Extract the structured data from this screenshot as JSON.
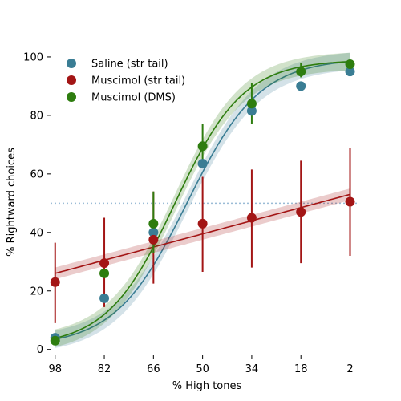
{
  "chart_data": {
    "type": "scatter",
    "title": "",
    "xlabel": "% High tones",
    "ylabel": "% Rightward choices",
    "x_ticks": [
      98,
      82,
      66,
      50,
      34,
      18,
      2
    ],
    "y_ticks": [
      0,
      20,
      40,
      60,
      80,
      100
    ],
    "xlim": [
      99.5,
      -1
    ],
    "ylim": [
      -2,
      103
    ],
    "x_reversed": true,
    "grid": false,
    "legend_position": "top-left",
    "reference_line": {
      "y": 50,
      "style": "dotted",
      "color": "#9bbcd6"
    },
    "series": [
      {
        "name": "Saline (str tail)",
        "color": "#3a7d94",
        "x": [
          98,
          82,
          66,
          50,
          34,
          18,
          2
        ],
        "y": [
          4,
          17.5,
          40,
          63.5,
          81.5,
          90,
          95
        ],
        "err_low": [
          4,
          17.5,
          40,
          63.5,
          81.5,
          90,
          95
        ],
        "err_high": [
          4,
          17.5,
          40,
          63.5,
          81.5,
          90,
          95
        ],
        "fit": {
          "low": 1,
          "high": 99.5,
          "mid": 55,
          "slope": 0.085,
          "band": 3
        }
      },
      {
        "name": "Muscimol (str tail)",
        "color": "#a31515",
        "x": [
          98,
          82,
          66,
          50,
          34,
          18,
          2
        ],
        "y": [
          23,
          29.5,
          37.5,
          43,
          45,
          47,
          50.5
        ],
        "err_low": [
          9,
          14.5,
          22.5,
          26.5,
          28,
          29.5,
          32
        ],
        "err_high": [
          36.5,
          45,
          54,
          59,
          61.5,
          64.5,
          69
        ],
        "fit": {
          "linear": true,
          "y_at_98": 26,
          "y_at_2": 53,
          "band": 2
        }
      },
      {
        "name": "Muscimol (DMS)",
        "color": "#2e7d0f",
        "x": [
          98,
          82,
          66,
          50,
          34,
          18,
          2
        ],
        "y": [
          3,
          26,
          43,
          69.5,
          84,
          95,
          97.5
        ],
        "err_low": [
          3,
          26,
          33,
          63,
          77,
          93,
          96
        ],
        "err_high": [
          3,
          26,
          54,
          77,
          91,
          98,
          99
        ],
        "fit": {
          "low": 1,
          "high": 99,
          "mid": 59,
          "slope": 0.09,
          "band": 3
        }
      }
    ]
  }
}
